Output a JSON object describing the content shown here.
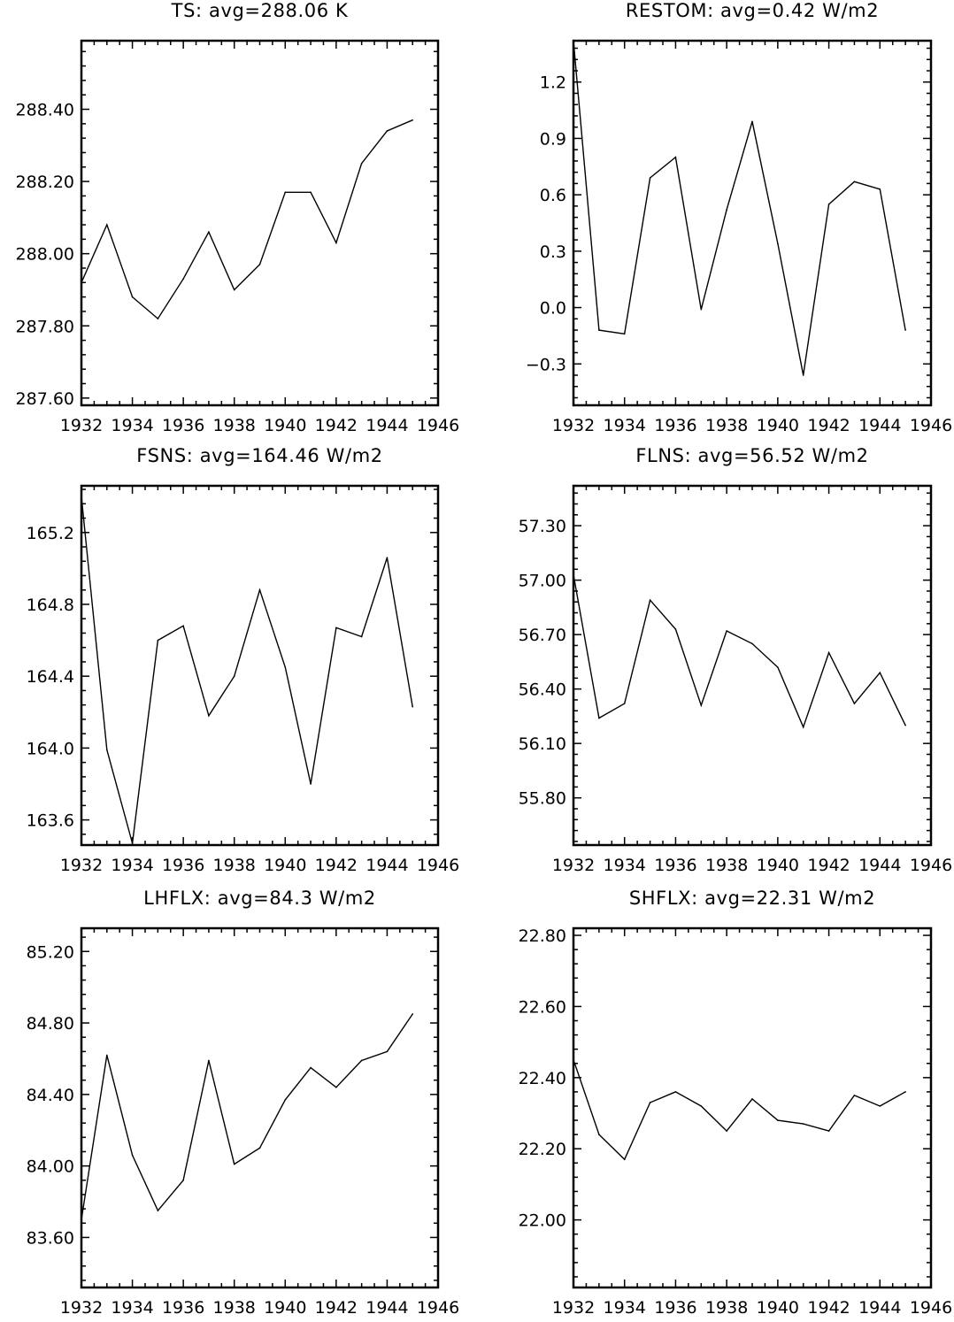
{
  "chart_data": [
    {
      "type": "line",
      "title": "TS: avg=288.06 K",
      "x": [
        1932,
        1933,
        1934,
        1935,
        1936,
        1937,
        1938,
        1939,
        1940,
        1941,
        1942,
        1943,
        1944,
        1945
      ],
      "values": [
        287.92,
        288.08,
        287.88,
        287.82,
        287.93,
        288.06,
        287.9,
        287.97,
        288.17,
        288.17,
        288.03,
        288.25,
        288.34,
        288.37
      ],
      "xlim": [
        1932,
        1946
      ],
      "ylim": [
        287.58,
        288.59
      ],
      "xticks": [
        "1932",
        "1934",
        "1936",
        "1938",
        "1940",
        "1942",
        "1944",
        "1946"
      ],
      "yticks": [
        "287.60",
        "287.80",
        "288.00",
        "288.20",
        "288.40"
      ],
      "grid": false
    },
    {
      "type": "line",
      "title": "RESTOM: avg=0.42 W/m2",
      "x": [
        1932,
        1933,
        1934,
        1935,
        1936,
        1937,
        1938,
        1939,
        1940,
        1941,
        1942,
        1943,
        1944,
        1945
      ],
      "values": [
        1.42,
        -0.12,
        -0.14,
        0.69,
        0.8,
        -0.01,
        0.52,
        0.99,
        0.34,
        -0.36,
        0.55,
        0.67,
        0.63,
        -0.12
      ],
      "xlim": [
        1932,
        1946
      ],
      "ylim": [
        -0.52,
        1.42
      ],
      "xticks": [
        "1932",
        "1934",
        "1936",
        "1938",
        "1940",
        "1942",
        "1944",
        "1946"
      ],
      "yticks": [
        "−0.3",
        "0.0",
        "0.3",
        "0.6",
        "0.9",
        "1.2"
      ],
      "grid": false
    },
    {
      "type": "line",
      "title": "FSNS: avg=164.46 W/m2",
      "x": [
        1932,
        1933,
        1934,
        1935,
        1936,
        1937,
        1938,
        1939,
        1940,
        1941,
        1942,
        1943,
        1944,
        1945
      ],
      "values": [
        165.4,
        163.99,
        163.47,
        164.6,
        164.68,
        164.18,
        164.4,
        164.88,
        164.45,
        163.8,
        164.67,
        164.62,
        165.06,
        164.23
      ],
      "xlim": [
        1932,
        1946
      ],
      "ylim": [
        163.46,
        165.46
      ],
      "xticks": [
        "1932",
        "1934",
        "1936",
        "1938",
        "1940",
        "1942",
        "1944",
        "1946"
      ],
      "yticks": [
        "163.6",
        "164.0",
        "164.4",
        "164.8",
        "165.2"
      ],
      "grid": false
    },
    {
      "type": "line",
      "title": "FLNS: avg=56.52 W/m2",
      "x": [
        1932,
        1933,
        1934,
        1935,
        1936,
        1937,
        1938,
        1939,
        1940,
        1941,
        1942,
        1943,
        1944,
        1945
      ],
      "values": [
        57.03,
        56.24,
        56.32,
        56.89,
        56.73,
        56.31,
        56.72,
        56.65,
        56.52,
        56.19,
        56.6,
        56.32,
        56.49,
        56.2
      ],
      "xlim": [
        1932,
        1946
      ],
      "ylim": [
        55.54,
        57.52
      ],
      "xticks": [
        "1932",
        "1934",
        "1936",
        "1938",
        "1940",
        "1942",
        "1944",
        "1946"
      ],
      "yticks": [
        "55.80",
        "56.10",
        "56.40",
        "56.70",
        "57.00",
        "57.30"
      ],
      "grid": false
    },
    {
      "type": "line",
      "title": "LHFLX: avg=84.3 W/m2",
      "x": [
        1932,
        1933,
        1934,
        1935,
        1936,
        1937,
        1938,
        1939,
        1940,
        1941,
        1942,
        1943,
        1944,
        1945
      ],
      "values": [
        83.7,
        84.62,
        84.06,
        83.75,
        83.92,
        84.59,
        84.01,
        84.1,
        84.37,
        84.55,
        84.44,
        84.59,
        84.64,
        84.85
      ],
      "xlim": [
        1932,
        1946
      ],
      "ylim": [
        83.32,
        85.33
      ],
      "xticks": [
        "1932",
        "1934",
        "1936",
        "1938",
        "1940",
        "1942",
        "1944",
        "1946"
      ],
      "yticks": [
        "83.60",
        "84.00",
        "84.40",
        "84.80",
        "85.20"
      ],
      "grid": false
    },
    {
      "type": "line",
      "title": "SHFLX: avg=22.31 W/m2",
      "x": [
        1932,
        1933,
        1934,
        1935,
        1936,
        1937,
        1938,
        1939,
        1940,
        1941,
        1942,
        1943,
        1944,
        1945
      ],
      "values": [
        22.45,
        22.24,
        22.17,
        22.33,
        22.36,
        22.32,
        22.25,
        22.34,
        22.28,
        22.27,
        22.25,
        22.35,
        22.32,
        22.36
      ],
      "xlim": [
        1932,
        1946
      ],
      "ylim": [
        21.81,
        22.82
      ],
      "xticks": [
        "1932",
        "1934",
        "1936",
        "1938",
        "1940",
        "1942",
        "1944",
        "1946"
      ],
      "yticks": [
        "22.00",
        "22.20",
        "22.40",
        "22.60",
        "22.80"
      ],
      "grid": false
    }
  ]
}
